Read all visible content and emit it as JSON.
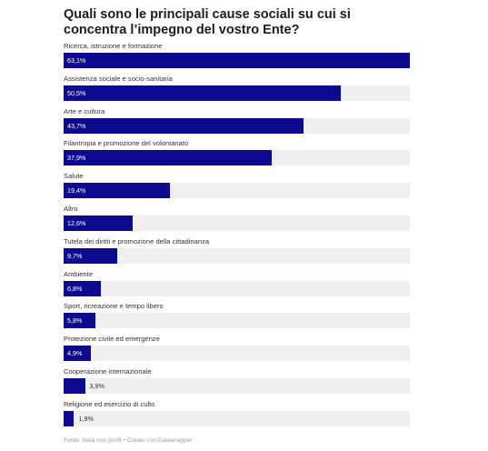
{
  "title": "Quali sono le principali cause sociali su cui si concentra l’impegno del vostro Ente?",
  "footer": "Fonte: Italia non profit • Creato con Datawrapper",
  "colors": {
    "bar": "#0d0a8f",
    "track": "#efefef"
  },
  "chart_data": {
    "type": "bar",
    "orientation": "horizontal",
    "title": "Quali sono le principali cause sociali su cui si concentra l’impegno del vostro Ente?",
    "xlim": [
      0,
      63.1
    ],
    "categories": [
      "Ricerca, istruzione e formazione",
      "Assistenza sociale e socio-sanitaria",
      "Arte e cultura",
      "Filantropia e promozione del volontariato",
      "Salute",
      "Altro",
      "Tutela dei diritti e promozione della cittadinanza",
      "Ambiente",
      "Sport, ricreazione e tempo libero",
      "Protezione civile ed emergenze",
      "Cooperazione internazionale",
      "Religione ed esercizio di culto"
    ],
    "values": [
      63.1,
      50.5,
      43.7,
      37.9,
      19.4,
      12.6,
      9.7,
      6.8,
      5.8,
      4.9,
      3.9,
      1.9
    ],
    "value_labels": [
      "63,1%",
      "50,5%",
      "43,7%",
      "37,9%",
      "19,4%",
      "12,6%",
      "9,7%",
      "6,8%",
      "5,8%",
      "4,9%",
      "3,9%",
      "1,9%"
    ],
    "grid": false,
    "legend": "none"
  }
}
